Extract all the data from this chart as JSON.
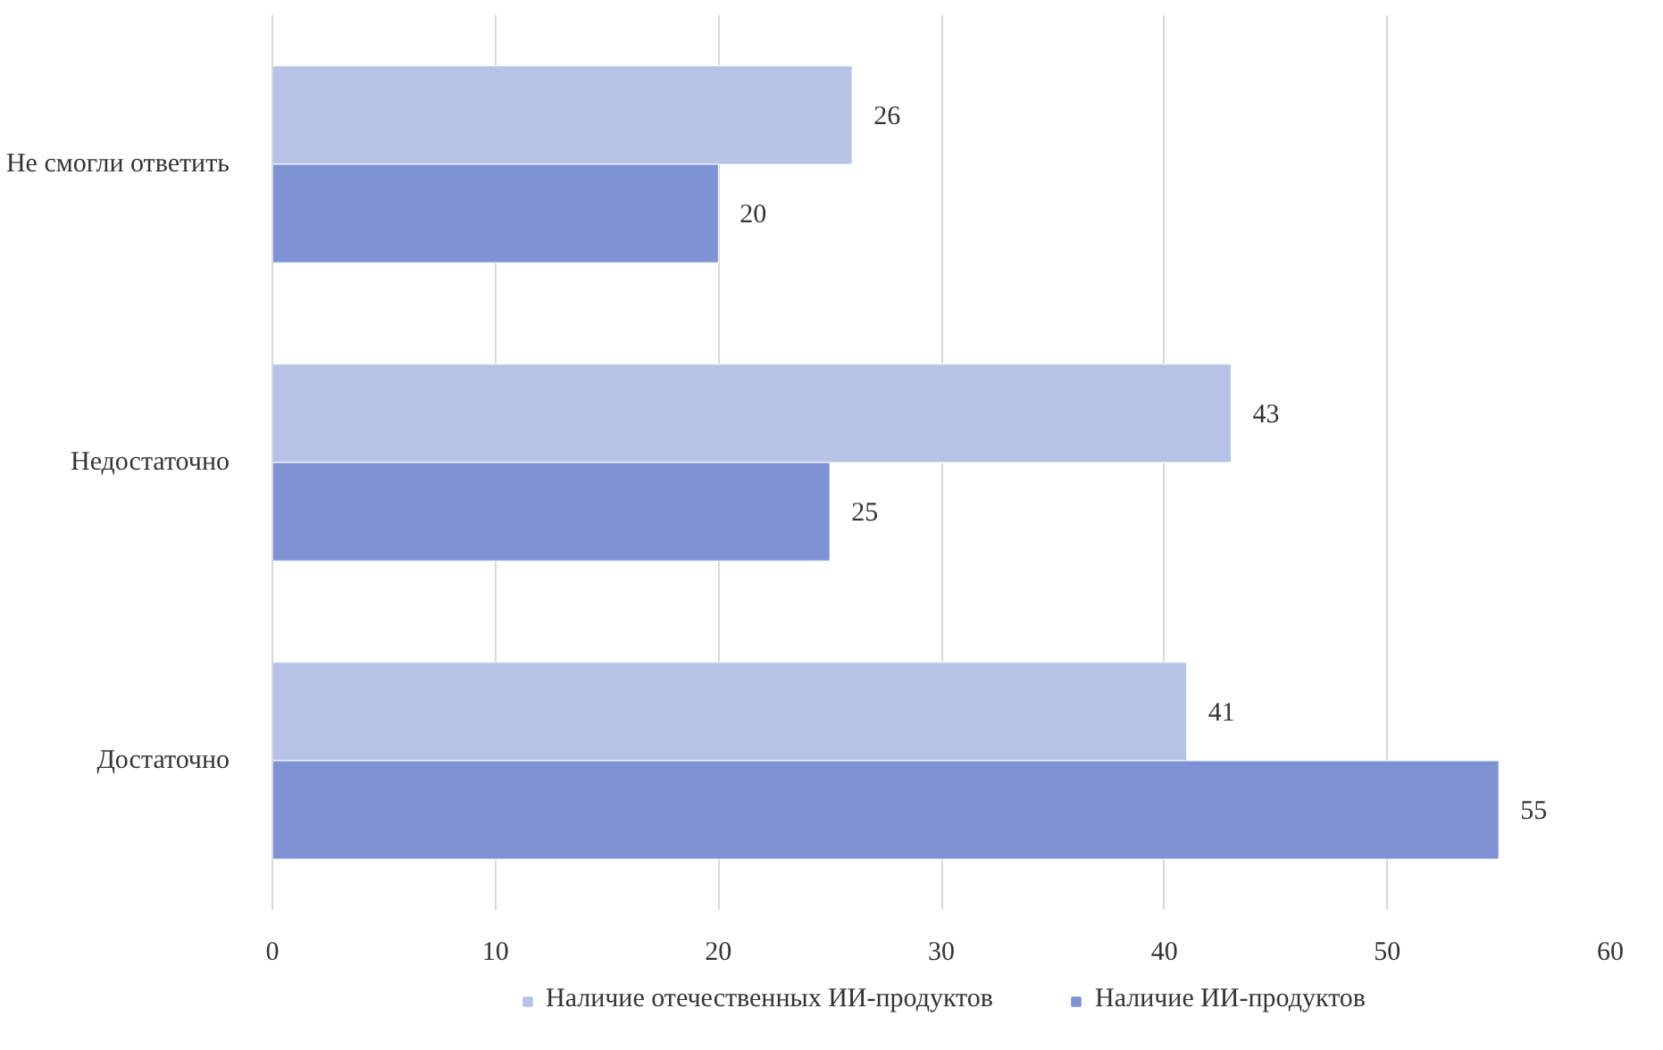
{
  "chart_data": {
    "type": "bar",
    "orientation": "horizontal",
    "categories": [
      "Не смогли ответить",
      "Недостаточно",
      "Достаточно"
    ],
    "series": [
      {
        "name": "Наличие отечественных ИИ-продуктов",
        "color": "#b7c3e6",
        "values": [
          26,
          43,
          41
        ]
      },
      {
        "name": "Наличие ИИ-продуктов",
        "color": "#7e92d4",
        "values": [
          20,
          25,
          55
        ]
      }
    ],
    "xlim": [
      0,
      60
    ],
    "xticks": [
      0,
      10,
      20,
      30,
      40,
      50,
      60
    ],
    "grid": "x",
    "legend": "bottom",
    "data_labels": true
  }
}
